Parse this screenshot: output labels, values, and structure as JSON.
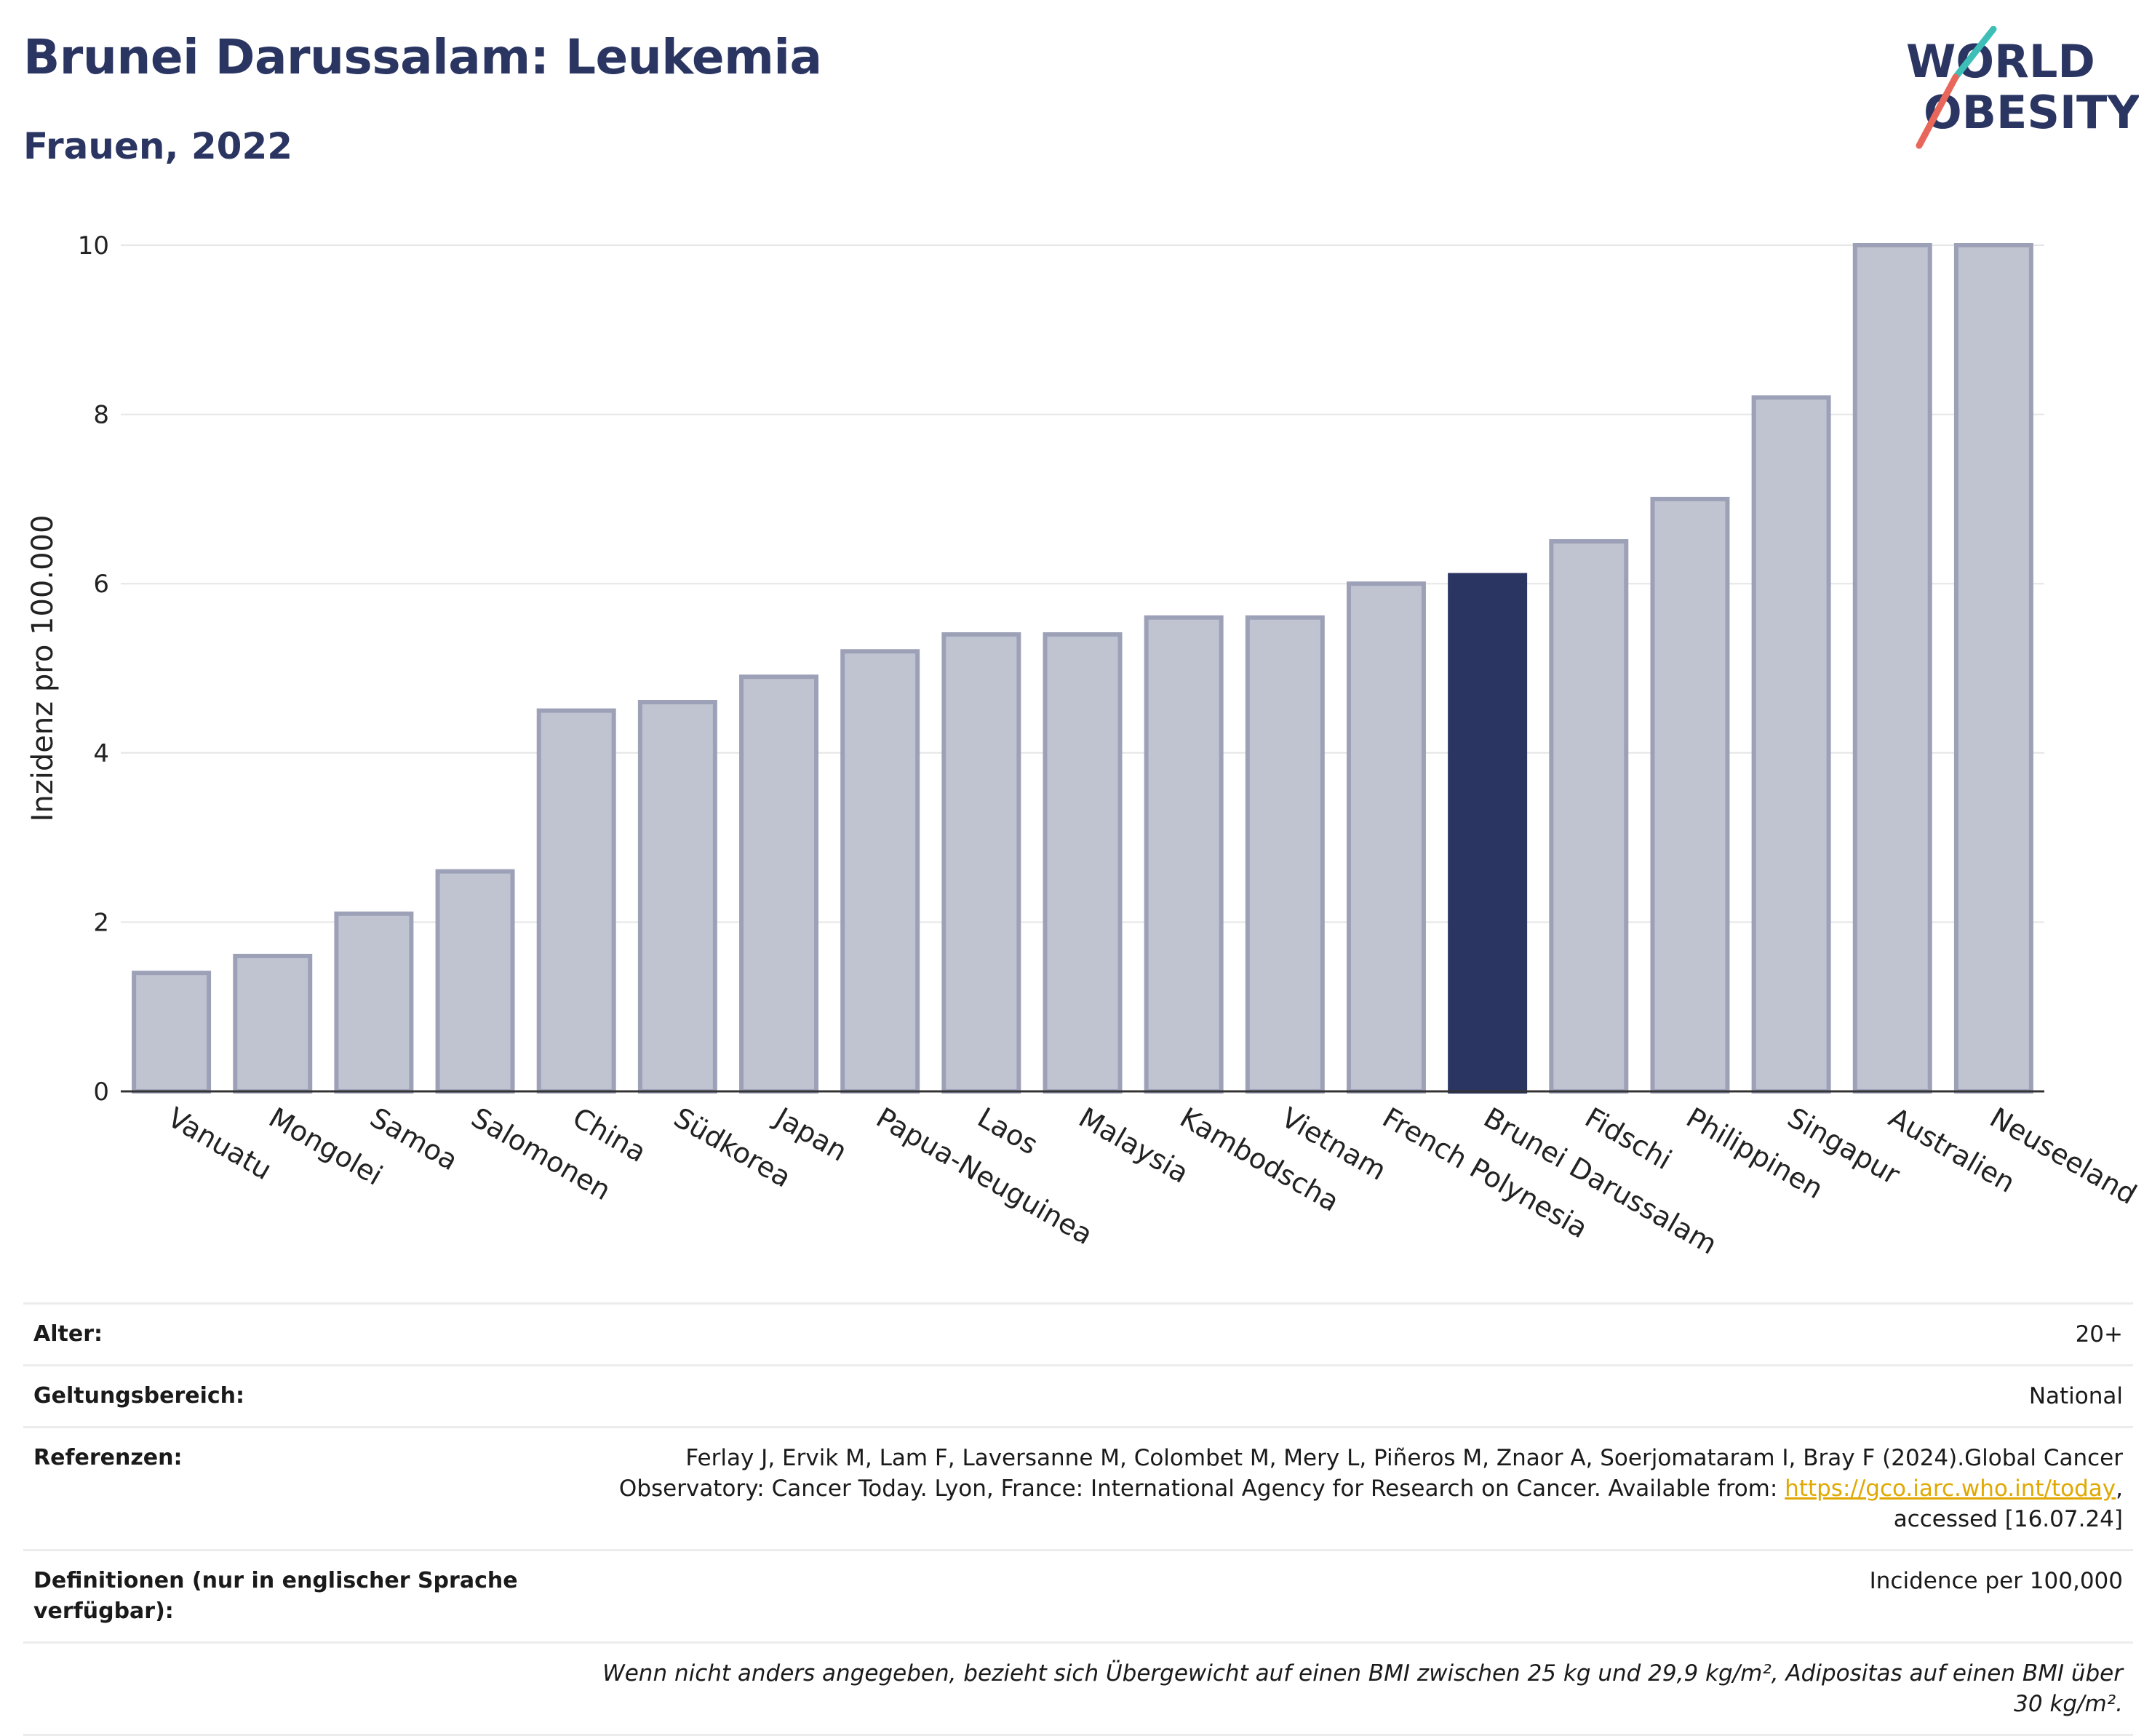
{
  "header": {
    "title": "Brunei Darussalam: Leukemia",
    "subtitle": "Frauen, 2022",
    "logo_line1": "WORLD",
    "logo_line2": "OBESITY"
  },
  "chart_data": {
    "type": "bar",
    "ylabel": "Inzidenz pro 100.000",
    "ylim": [
      0,
      10
    ],
    "yticks": [
      0,
      2,
      4,
      6,
      8,
      10
    ],
    "categories": [
      "Vanuatu",
      "Mongolei",
      "Samoa",
      "Salomonen",
      "China",
      "Südkorea",
      "Japan",
      "Papua-Neuguinea",
      "Laos",
      "Malaysia",
      "Kambodscha",
      "Vietnam",
      "French Polynesia",
      "Brunei Darussalam",
      "Fidschi",
      "Philippinen",
      "Singapur",
      "Australien",
      "Neuseeland"
    ],
    "values": [
      1.4,
      1.6,
      2.1,
      2.6,
      4.5,
      4.6,
      4.9,
      5.2,
      5.4,
      5.4,
      5.6,
      5.6,
      6.0,
      6.1,
      6.5,
      7.0,
      8.2,
      10.0,
      10.0
    ],
    "highlight": "Brunei Darussalam",
    "grid": true,
    "colors": {
      "bar": "#c0c3d0",
      "bar_border": "#9da1b8",
      "highlight": "#2a3562",
      "grid": "#e6e6e6",
      "axis": "#333333"
    }
  },
  "meta": {
    "rows": [
      {
        "key": "Alter:",
        "value": "20+"
      },
      {
        "key": "Geltungsbereich:",
        "value": "National"
      }
    ],
    "references": {
      "key": "Referenzen:",
      "line1": "Ferlay J, Ervik M, Lam F, Laversanne M, Colombet M, Mery L, Piñeros M, Znaor A, Soerjomataram I, Bray F (2024).Global Cancer",
      "line2_pre": "Observatory: Cancer Today. Lyon, France: International Agency for Research on Cancer. Available from: ",
      "link": "https://gco.iarc.who.int/today",
      "line2_post": ",",
      "line3": "accessed [16.07.24]"
    },
    "definitions": {
      "key": "Definitionen (nur in englischer Sprache verfügbar):",
      "value": "Incidence per 100,000"
    },
    "note": "Wenn nicht anders angegeben, bezieht sich Übergewicht auf einen BMI zwischen 25 kg und 29,9 kg/m², Adipositas auf einen BMI über 30 kg/m²."
  }
}
